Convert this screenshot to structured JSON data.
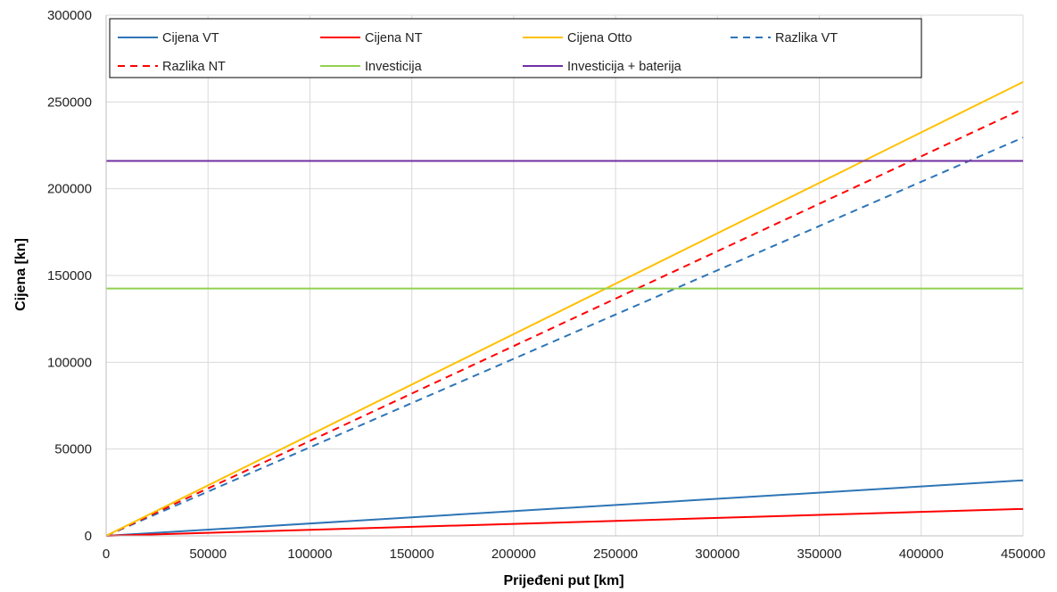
{
  "chart_data": {
    "type": "line",
    "xlabel": "Prijeđeni put [km]",
    "ylabel": "Cijena [kn]",
    "xlim": [
      0,
      450000
    ],
    "ylim": [
      0,
      300000
    ],
    "x_ticks": [
      0,
      50000,
      100000,
      150000,
      200000,
      250000,
      300000,
      350000,
      400000,
      450000
    ],
    "y_ticks": [
      0,
      50000,
      100000,
      150000,
      200000,
      250000,
      300000
    ],
    "grid": true,
    "legend_position": "top",
    "series": [
      {
        "name": "Cijena VT",
        "color": "#2e75b6",
        "dash": "solid",
        "x": [
          0,
          450000
        ],
        "y": [
          0,
          32000
        ]
      },
      {
        "name": "Cijena NT",
        "color": "#ff0000",
        "dash": "solid",
        "x": [
          0,
          450000
        ],
        "y": [
          0,
          15500
        ]
      },
      {
        "name": "Cijena Otto",
        "color": "#ffc000",
        "dash": "solid",
        "x": [
          0,
          450000
        ],
        "y": [
          0,
          261500
        ]
      },
      {
        "name": "Razlika VT",
        "color": "#2e75b6",
        "dash": "dashed",
        "x": [
          0,
          450000
        ],
        "y": [
          0,
          229500
        ]
      },
      {
        "name": "Razlika NT",
        "color": "#ff0000",
        "dash": "dashed",
        "x": [
          0,
          450000
        ],
        "y": [
          0,
          246000
        ]
      },
      {
        "name": "Investicija",
        "color": "#92d050",
        "dash": "solid",
        "x": [
          0,
          450000
        ],
        "y": [
          142500,
          142500
        ]
      },
      {
        "name": "Investicija + baterija",
        "color": "#7030a0",
        "dash": "solid",
        "x": [
          0,
          450000
        ],
        "y": [
          216000,
          216000
        ]
      }
    ]
  }
}
